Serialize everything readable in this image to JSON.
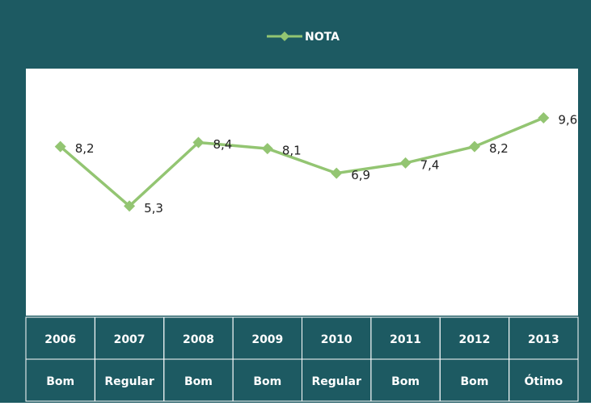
{
  "chart_data": {
    "type": "line",
    "categories": [
      "2006",
      "2007",
      "2008",
      "2009",
      "2010",
      "2011",
      "2012",
      "2013"
    ],
    "ratings": [
      "Bom",
      "Regular",
      "Bom",
      "Bom",
      "Regular",
      "Bom",
      "Bom",
      "Ótimo"
    ],
    "series": [
      {
        "name": "NOTA",
        "color": "#93c572",
        "values": [
          8.2,
          5.3,
          8.4,
          8.1,
          6.9,
          7.4,
          8.2,
          9.6
        ],
        "value_labels": [
          "8,2",
          "5,3",
          "8,4",
          "8,1",
          "6,9",
          "7,4",
          "8,2",
          "9,6"
        ]
      }
    ],
    "ylim": [
      0,
      12
    ],
    "legend": "top"
  }
}
